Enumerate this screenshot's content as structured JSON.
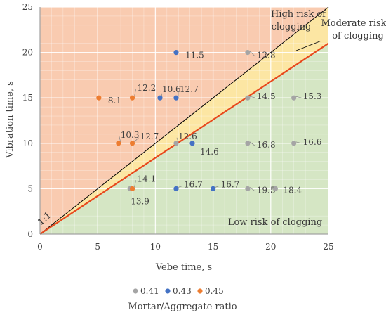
{
  "chart_data": {
    "type": "scatter",
    "xlabel": "Vebe time, s",
    "ylabel": "Vibration time, s",
    "xlim": [
      0,
      25
    ],
    "ylim": [
      0,
      25
    ],
    "x_ticks": [
      0,
      5,
      10,
      15,
      20,
      25
    ],
    "y_ticks": [
      0,
      5,
      10,
      15,
      20,
      25
    ],
    "grid": true,
    "legend_position": "bottom",
    "legend_title": "Mortar/Aggregate ratio",
    "regions": {
      "high": {
        "label_line1": "High risk of",
        "label_line2": "clogging",
        "color": "#F9CBB0"
      },
      "moderate": {
        "label_line1": "Moderate risk",
        "label_line2": "of clogging",
        "color": "#FCE6A3"
      },
      "low": {
        "label": "Low risk of clogging",
        "color": "#D5E6C4"
      }
    },
    "lines": [
      {
        "label": "1:1",
        "slope": 1.0,
        "color": "#000000"
      },
      {
        "label": "",
        "slope": 0.84,
        "color": "#E8481C"
      }
    ],
    "series": [
      {
        "name": "0.41",
        "color": "#A5A5A5",
        "points": [
          {
            "x": 18.0,
            "y": 20.0,
            "label": "12.8"
          },
          {
            "x": 18.0,
            "y": 15.0,
            "label": "14.5"
          },
          {
            "x": 22.0,
            "y": 15.0,
            "label": "15.3"
          },
          {
            "x": 18.0,
            "y": 10.0,
            "label": "16.8"
          },
          {
            "x": 22.0,
            "y": 10.0,
            "label": "16.6"
          },
          {
            "x": 18.0,
            "y": 5.0,
            "label": "19.5"
          },
          {
            "x": 20.4,
            "y": 5.0,
            "label": "18.4"
          },
          {
            "x": 11.8,
            "y": 10.0,
            "label": "12.6"
          },
          {
            "x": 7.8,
            "y": 5.0,
            "label": "13.9"
          }
        ]
      },
      {
        "name": "0.43",
        "color": "#4472C4",
        "points": [
          {
            "x": 11.8,
            "y": 20.0,
            "label": "11.5"
          },
          {
            "x": 10.4,
            "y": 15.0,
            "label": "10.6"
          },
          {
            "x": 11.8,
            "y": 15.0,
            "label": "12.7"
          },
          {
            "x": 13.2,
            "y": 10.0,
            "label": "14.6"
          },
          {
            "x": 11.8,
            "y": 5.0,
            "label": "16.7"
          },
          {
            "x": 15.0,
            "y": 5.0,
            "label": "16.7"
          }
        ]
      },
      {
        "name": "0.45",
        "color": "#ED7D31",
        "points": [
          {
            "x": 5.1,
            "y": 15.0,
            "label": "8.1"
          },
          {
            "x": 8.0,
            "y": 15.0,
            "label": "12.2"
          },
          {
            "x": 6.8,
            "y": 10.0,
            "label": "10.3"
          },
          {
            "x": 8.0,
            "y": 10.0,
            "label": "12.7"
          },
          {
            "x": 8.0,
            "y": 5.0,
            "label": "14.1"
          }
        ]
      }
    ]
  }
}
